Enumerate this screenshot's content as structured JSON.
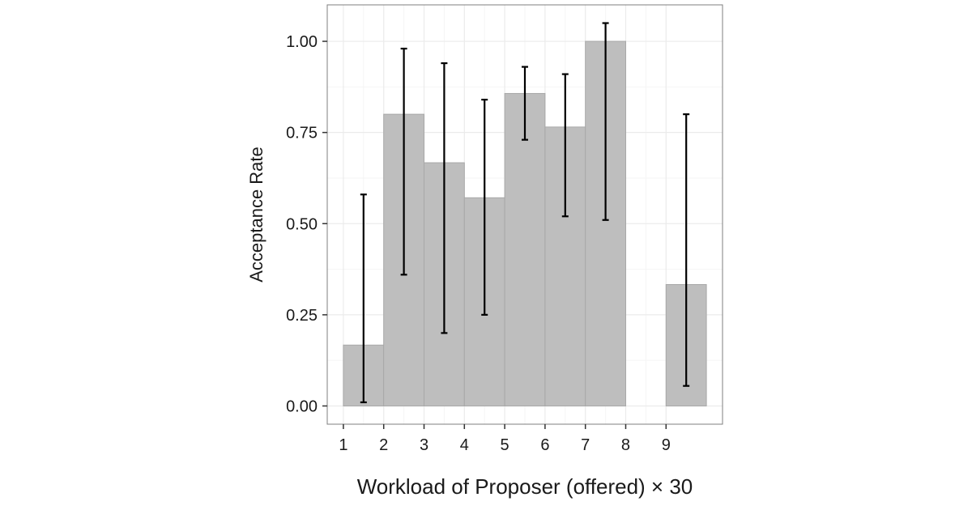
{
  "chart_data": {
    "type": "bar",
    "xlabel": "Workload of Proposer (offered) × 30",
    "ylabel": "Acceptance Rate",
    "xlim": [
      0.6,
      10.4
    ],
    "ylim": [
      -0.05,
      1.1
    ],
    "x_ticks": [
      1,
      2,
      3,
      4,
      5,
      6,
      7,
      8,
      9
    ],
    "x_tick_labels": [
      "1",
      "2",
      "3",
      "4",
      "5",
      "6",
      "7",
      "8",
      "9"
    ],
    "y_ticks": [
      0,
      0.25,
      0.5,
      0.75,
      1.0
    ],
    "y_tick_labels": [
      "0.00",
      "0.25",
      "0.50",
      "0.75",
      "1.00"
    ],
    "bin_width": 1,
    "bars": [
      {
        "x_start": 1,
        "value": 0.167,
        "err_low": 0.01,
        "err_high": 0.58
      },
      {
        "x_start": 2,
        "value": 0.8,
        "err_low": 0.36,
        "err_high": 0.98
      },
      {
        "x_start": 3,
        "value": 0.667,
        "err_low": 0.2,
        "err_high": 0.94
      },
      {
        "x_start": 4,
        "value": 0.571,
        "err_low": 0.25,
        "err_high": 0.84
      },
      {
        "x_start": 5,
        "value": 0.857,
        "err_low": 0.73,
        "err_high": 0.93
      },
      {
        "x_start": 6,
        "value": 0.765,
        "err_low": 0.52,
        "err_high": 0.91
      },
      {
        "x_start": 7,
        "value": 1.0,
        "err_low": 0.51,
        "err_high": 1.05
      },
      {
        "x_start": 9,
        "value": 0.333,
        "err_low": 0.055,
        "err_high": 0.8
      }
    ],
    "grid": true,
    "colors": {
      "bar_fill": "#bebebe",
      "bar_stroke": "#a8a8a8",
      "error_bar": "#000000",
      "grid_major": "#ebebeb",
      "grid_minor": "#f5f5f5",
      "panel_border": "#7f7f7f",
      "axis_text": "#1a1a1a"
    }
  }
}
